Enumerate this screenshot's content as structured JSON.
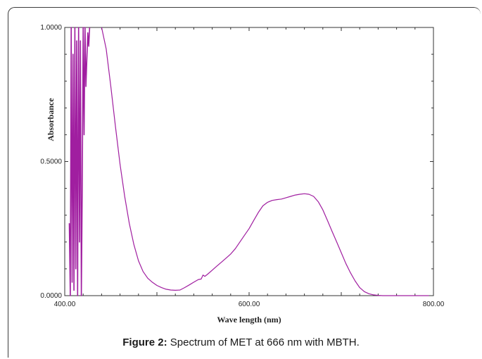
{
  "figure": {
    "caption_label": "Figure 2:",
    "caption_text": " Spectrum of MET at 666 nm with MBTH."
  },
  "chart_data": {
    "type": "line",
    "title": "",
    "xlabel": "Wave length (nm)",
    "ylabel": "Absorbance",
    "xlim": [
      400,
      800
    ],
    "ylim": [
      0,
      1
    ],
    "x_ticks": [
      "400.00",
      "600.00",
      "800.00"
    ],
    "y_ticks": [
      "0.0000",
      "0.5000",
      "1.0000"
    ],
    "grid": false,
    "line_color": "#a01ea0",
    "series": [
      {
        "x": [
          440,
          445,
          450,
          455,
          460,
          465,
          470,
          475,
          480,
          485,
          490,
          495,
          500,
          505,
          510,
          515,
          520,
          525,
          530,
          535,
          540,
          545,
          548,
          550,
          552,
          555,
          560,
          565,
          570,
          575,
          580,
          585,
          590,
          595,
          600,
          605,
          610,
          615,
          620,
          625,
          630,
          635,
          640,
          645,
          650,
          655,
          660,
          665,
          670,
          675,
          680,
          685,
          690,
          695,
          700,
          705,
          710,
          715,
          720,
          725,
          730,
          735,
          740,
          745,
          750,
          755,
          760,
          765,
          770,
          775,
          780,
          785,
          790,
          795
        ],
        "y": [
          1.0,
          0.92,
          0.78,
          0.63,
          0.49,
          0.37,
          0.27,
          0.19,
          0.13,
          0.09,
          0.065,
          0.05,
          0.038,
          0.03,
          0.024,
          0.021,
          0.02,
          0.021,
          0.03,
          0.04,
          0.05,
          0.06,
          0.062,
          0.077,
          0.072,
          0.08,
          0.095,
          0.11,
          0.125,
          0.14,
          0.155,
          0.175,
          0.2,
          0.225,
          0.25,
          0.28,
          0.31,
          0.335,
          0.348,
          0.355,
          0.358,
          0.36,
          0.365,
          0.37,
          0.375,
          0.378,
          0.38,
          0.378,
          0.37,
          0.35,
          0.32,
          0.28,
          0.24,
          0.2,
          0.16,
          0.12,
          0.085,
          0.055,
          0.03,
          0.015,
          0.007,
          0.003,
          0.001,
          0.0,
          0.0,
          0.0,
          0.0,
          0.0,
          0.0,
          0.0,
          0.0,
          0.0,
          0.0,
          0.0
        ]
      },
      {
        "x": [
          405,
          406,
          407,
          408,
          409,
          410,
          411,
          412,
          413,
          414,
          415,
          416,
          417,
          418,
          419,
          420,
          421,
          422,
          423,
          424,
          425,
          426,
          427
        ],
        "y": [
          0.27,
          0.0,
          1.0,
          0.05,
          0.9,
          0.02,
          1.0,
          0.1,
          0.95,
          0.0,
          1.0,
          0.2,
          0.95,
          0.0,
          0.4,
          1.0,
          0.6,
          1.0,
          0.78,
          0.88,
          0.98,
          0.93,
          1.0
        ]
      }
    ]
  }
}
